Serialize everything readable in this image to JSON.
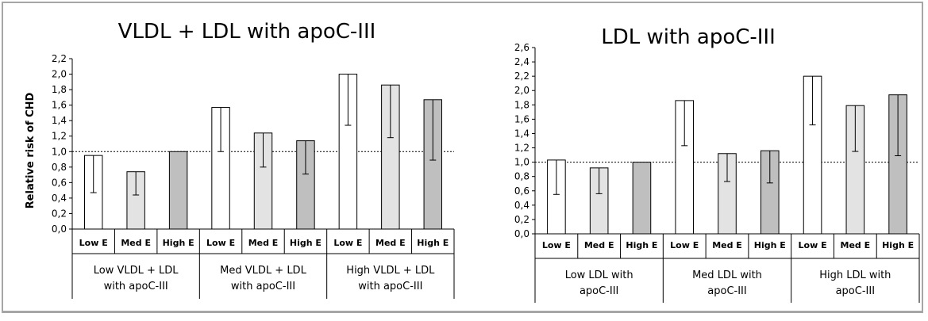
{
  "colors": {
    "low": "#ffffff",
    "med": "#e3e3e3",
    "high": "#bfbfbf",
    "frame": "#a6a6a6",
    "stroke": "#000000"
  },
  "chart_data": [
    {
      "type": "bar",
      "title": "VLDL + LDL with apoC-III",
      "ylabel": "Relative risk of CHD",
      "xlabel": "",
      "ylim": [
        0,
        2.2
      ],
      "yticks": [
        "0,0",
        "0,2",
        "0,4",
        "0,6",
        "0,8",
        "1,0",
        "1,2",
        "1,4",
        "1,6",
        "1,8",
        "2,0",
        "2,2"
      ],
      "reference_line": 1.0,
      "groups": [
        {
          "label_lines": [
            "Low VLDL + LDL",
            "with apoC-III"
          ]
        },
        {
          "label_lines": [
            "Med VLDL + LDL",
            "with apoC-III"
          ]
        },
        {
          "label_lines": [
            "High VLDL + LDL",
            "with apoC-III"
          ]
        }
      ],
      "categories": [
        "Low E",
        "Med E",
        "High E",
        "Low E",
        "Med E",
        "High E",
        "Low E",
        "Med E",
        "High E"
      ],
      "values": [
        0.95,
        0.74,
        1.0,
        1.57,
        1.24,
        1.14,
        2.0,
        1.86,
        1.67
      ],
      "ci_low": [
        0.47,
        0.44,
        null,
        1.0,
        0.8,
        0.71,
        1.34,
        1.18,
        0.89
      ],
      "ci_high": [
        0.95,
        0.74,
        null,
        1.57,
        1.24,
        1.14,
        2.0,
        1.86,
        1.67
      ]
    },
    {
      "type": "bar",
      "title": "LDL with apoC-III",
      "ylabel": "",
      "xlabel": "",
      "ylim": [
        0,
        2.6
      ],
      "yticks": [
        "0,0",
        "0,2",
        "0,4",
        "0,6",
        "0,8",
        "1,0",
        "1,2",
        "1,4",
        "1,6",
        "1,8",
        "2,0",
        "2,2",
        "2,4",
        "2,6"
      ],
      "reference_line": 1.0,
      "groups": [
        {
          "label_lines": [
            "Low LDL with",
            "apoC-III"
          ]
        },
        {
          "label_lines": [
            "Med LDL with",
            "apoC-III"
          ]
        },
        {
          "label_lines": [
            "High LDL with",
            "apoC-III"
          ]
        }
      ],
      "categories": [
        "Low E",
        "Med E",
        "High E",
        "Low E",
        "Med E",
        "High E",
        "Low E",
        "Med E",
        "High E"
      ],
      "values": [
        1.03,
        0.92,
        1.0,
        1.86,
        1.12,
        1.16,
        2.2,
        1.79,
        1.94
      ],
      "ci_low": [
        0.55,
        0.56,
        null,
        1.23,
        0.73,
        0.71,
        1.52,
        1.15,
        1.09
      ],
      "ci_high": [
        1.03,
        0.92,
        null,
        1.86,
        1.12,
        1.16,
        2.2,
        1.79,
        1.94
      ]
    }
  ]
}
